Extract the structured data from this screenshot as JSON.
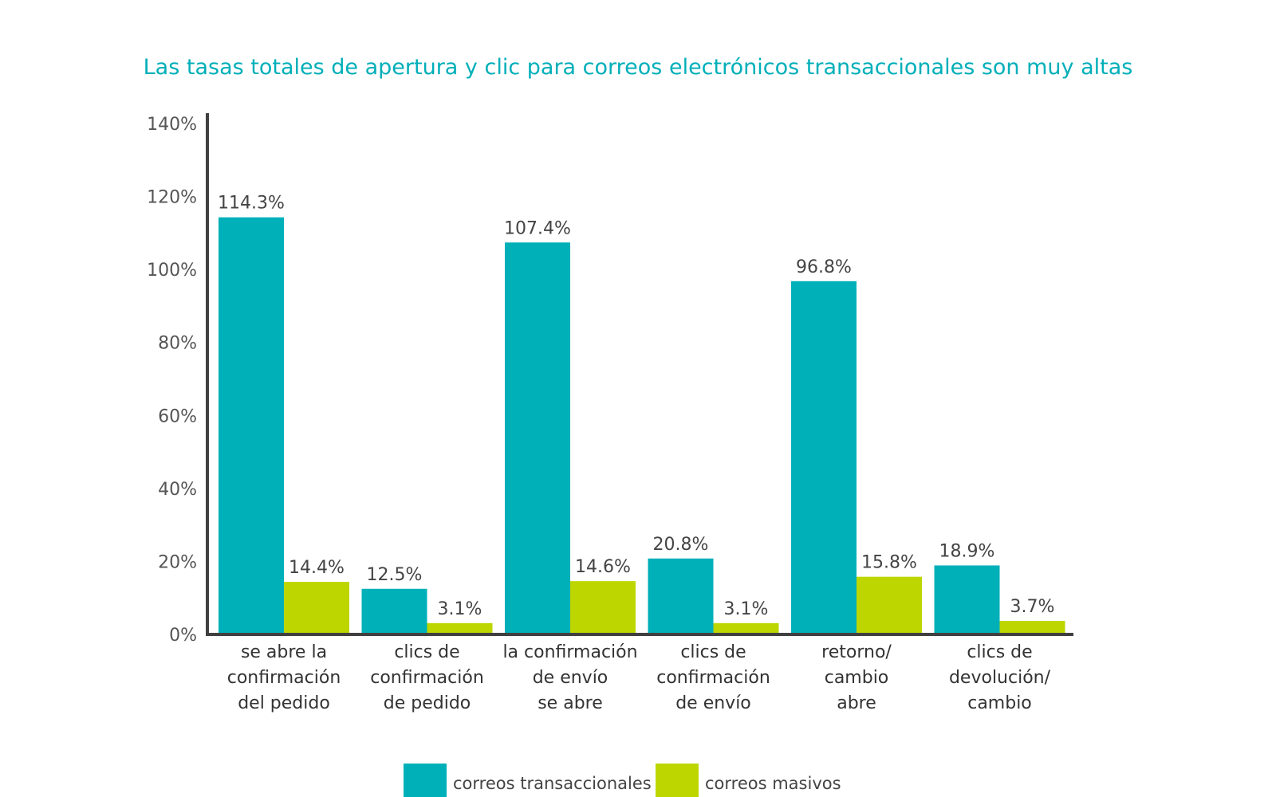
{
  "chart_data": {
    "type": "bar",
    "title": "Las tasas totales de apertura y clic para correos electrónicos transaccionales son muy altas",
    "xlabel": "",
    "ylabel": "",
    "ylim": [
      0,
      140
    ],
    "yticks": [
      0,
      20,
      40,
      60,
      80,
      100,
      120,
      140
    ],
    "ytick_labels": [
      "0%",
      "20%",
      "40%",
      "60%",
      "80%",
      "100%",
      "120%",
      "140%"
    ],
    "categories": [
      [
        "se abre la",
        "confirmación",
        "del pedido"
      ],
      [
        "clics de",
        "confirmación",
        "de pedido"
      ],
      [
        "la confirmación",
        "de envío",
        "se abre"
      ],
      [
        "clics de",
        "confirmación",
        "de envío"
      ],
      [
        "retorno/",
        "cambio",
        "abre"
      ],
      [
        "clics de",
        "devolución/",
        "cambio"
      ]
    ],
    "series": [
      {
        "name": "correos transaccionales",
        "color": "#00b0b9",
        "values": [
          114.3,
          12.5,
          107.4,
          20.8,
          96.8,
          18.9
        ],
        "labels": [
          "114.3%",
          "12.5%",
          "107.4%",
          "20.8%",
          "96.8%",
          "18.9%"
        ]
      },
      {
        "name": "correos masivos",
        "color": "#bdd600",
        "values": [
          14.4,
          3.1,
          14.6,
          3.1,
          15.8,
          3.7
        ],
        "labels": [
          "14.4%",
          "3.1%",
          "14.6%",
          "3.1%",
          "15.8%",
          "3.7%"
        ]
      }
    ],
    "grid": false,
    "legend_position": "bottom-center"
  }
}
